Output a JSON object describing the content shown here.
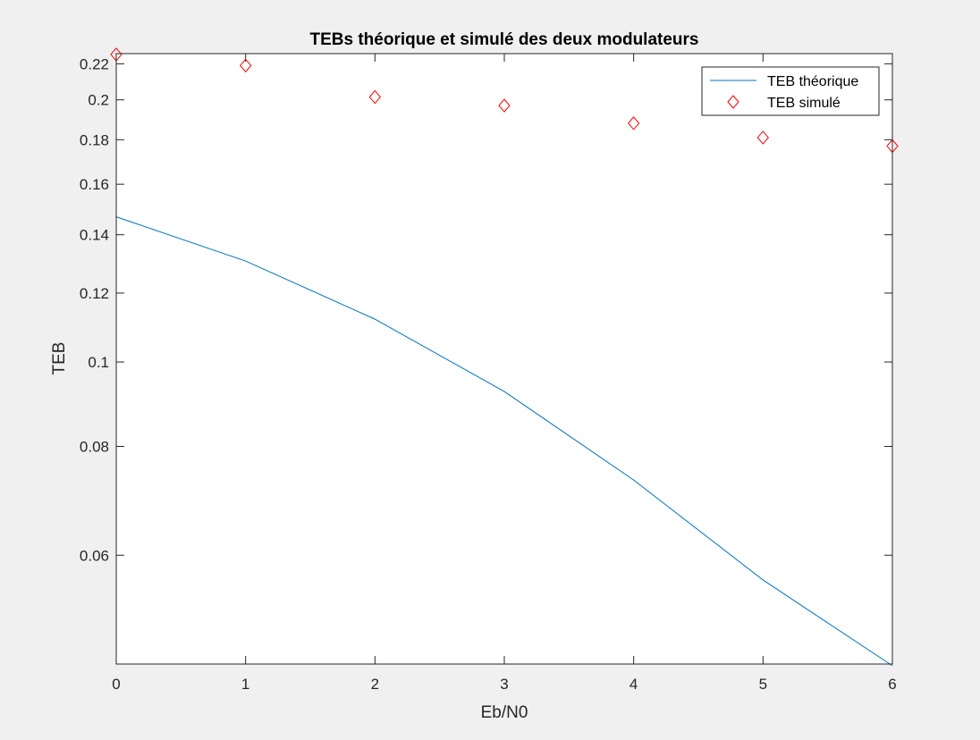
{
  "chart_data": {
    "type": "line",
    "title": "TEBs théorique et simulé des deux modulateurs",
    "xlabel": "Eb/N0",
    "ylabel": "TEB",
    "xlim": [
      0,
      6
    ],
    "ylim": [
      0.045,
      0.226
    ],
    "yscale": "log",
    "xticks": [
      "0",
      "1",
      "2",
      "3",
      "4",
      "5",
      "6"
    ],
    "yticks": [
      "0.06",
      "0.08",
      "0.1",
      "0.12",
      "0.14",
      "0.16",
      "0.18",
      "0.2",
      "0.22"
    ],
    "legend_position": "top-right",
    "grid": false,
    "series": [
      {
        "name": "TEB théorique",
        "style": "line",
        "color": "#0072bd",
        "x": [
          0,
          1,
          2,
          3,
          4,
          5,
          6
        ],
        "values": [
          0.1468,
          0.1306,
          0.112,
          0.0925,
          0.0732,
          0.0562,
          0.0448
        ]
      },
      {
        "name": "TEB simulé",
        "style": "diamond-markers",
        "color": "#ff0000",
        "x": [
          0,
          1,
          2,
          3,
          4,
          5,
          6
        ],
        "values": [
          0.2255,
          0.219,
          0.2015,
          0.197,
          0.188,
          0.181,
          0.177
        ]
      }
    ]
  }
}
